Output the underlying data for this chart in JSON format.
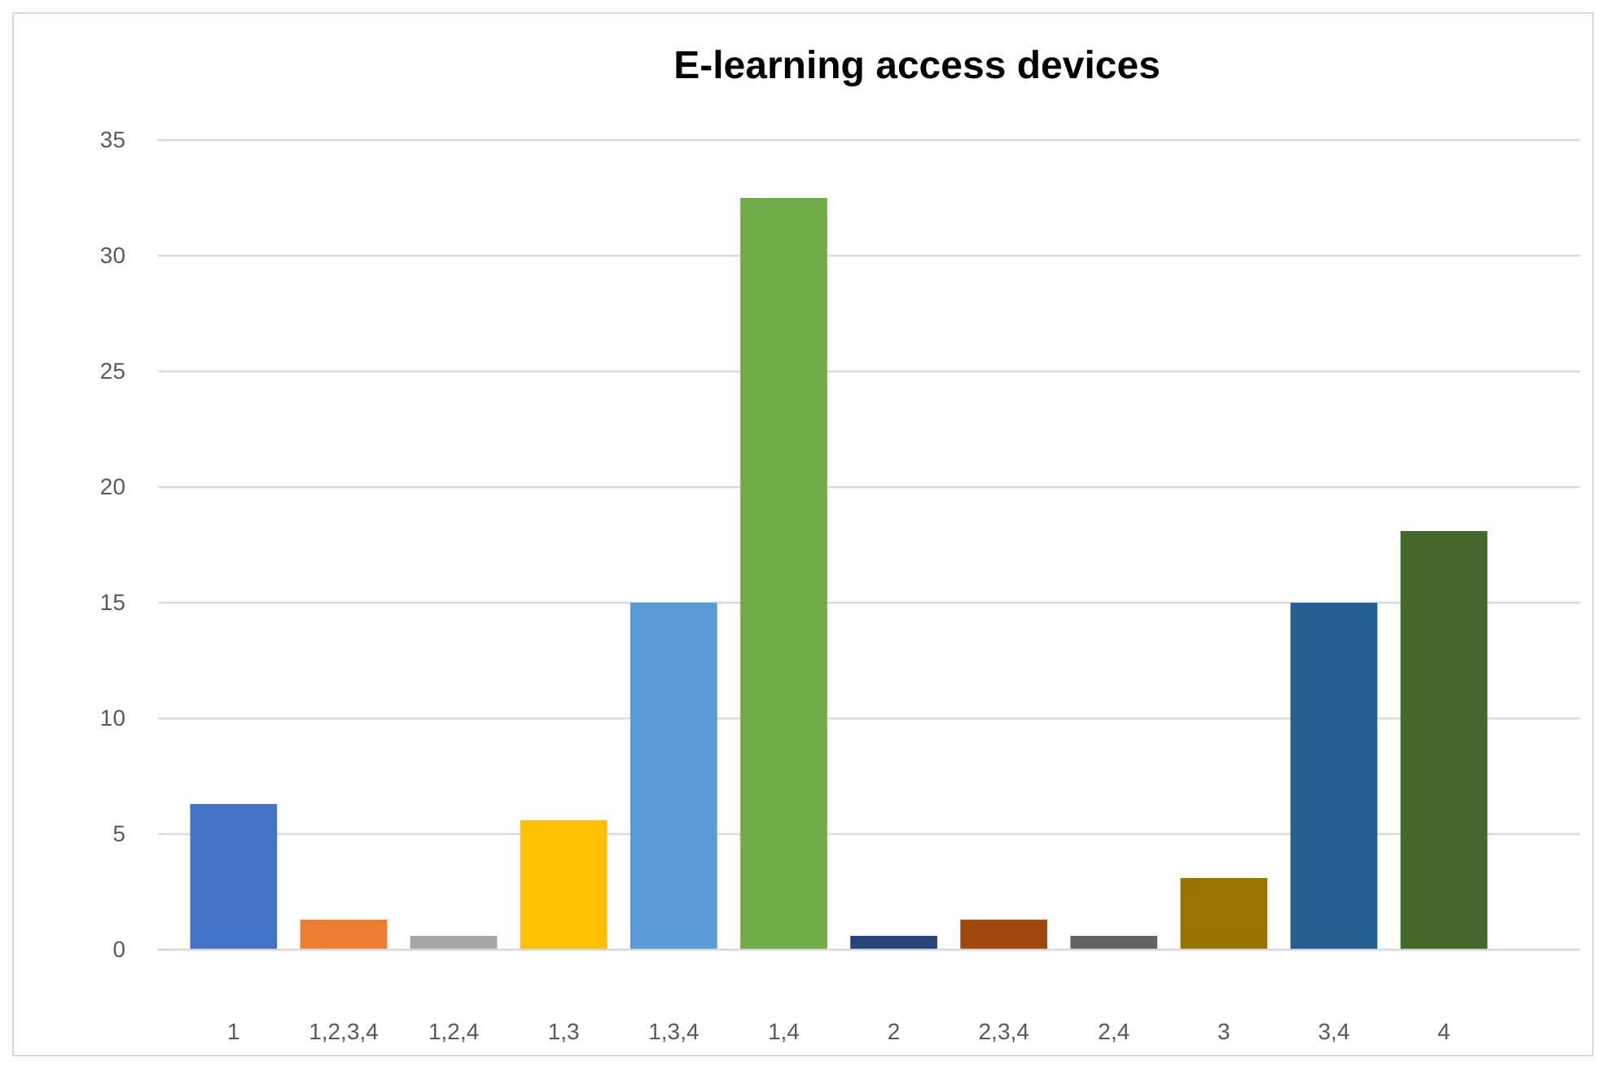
{
  "chart_data": {
    "type": "bar",
    "title": "E-learning access devices",
    "categories": [
      "1",
      "1,2,3,4",
      "1,2,4",
      "1,3",
      "1,3,4",
      "1,4",
      "2",
      "2,3,4",
      "2,4",
      "3",
      "3,4",
      "4"
    ],
    "values": [
      6.3,
      1.3,
      0.6,
      5.6,
      15,
      32.5,
      0.6,
      1.3,
      0.6,
      3.1,
      15,
      18.1
    ],
    "colors": [
      "#4472c4",
      "#ed7d31",
      "#a5a5a5",
      "#ffc000",
      "#5b9bd5",
      "#70ad47",
      "#264478",
      "#9e480e",
      "#636363",
      "#997300",
      "#255e91",
      "#43682b"
    ],
    "ylim": [
      0,
      35
    ],
    "yticks": [
      0,
      5,
      10,
      15,
      20,
      25,
      30,
      35
    ],
    "grid": "y"
  }
}
